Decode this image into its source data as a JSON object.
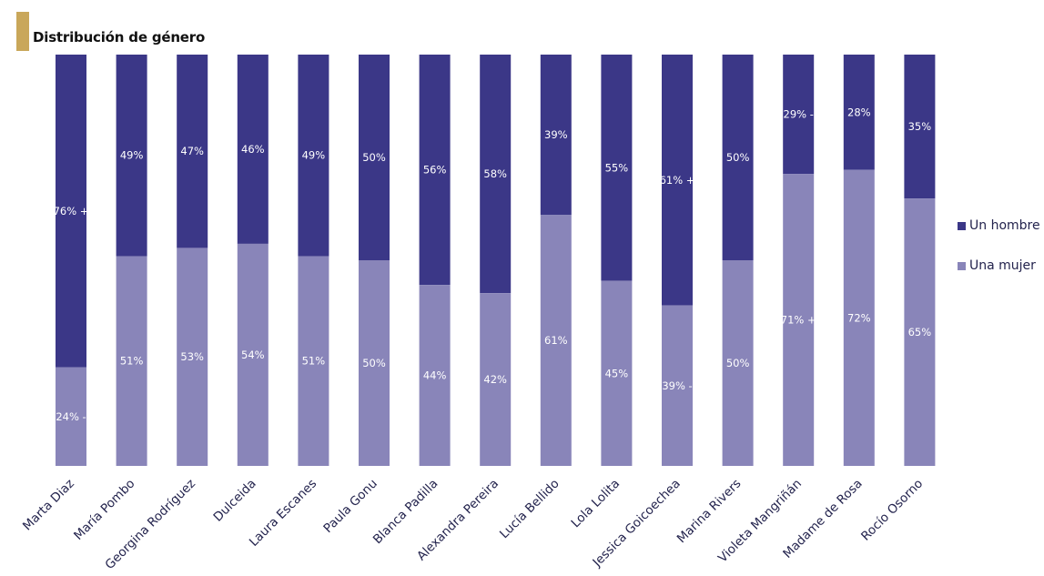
{
  "title": "Distribución de género",
  "colors": {
    "hombre": "#3b3787",
    "mujer": "#8985b9",
    "accent": "#c9a75a"
  },
  "chart_data": {
    "type": "bar",
    "stacked": true,
    "title": "Distribución de género",
    "categories": [
      "Marta Diaz",
      "María Pombo",
      "Georgina Rodríguez",
      "Dulceida",
      "Laura Escanes",
      "Paula Gonu",
      "Blanca Padilla",
      "Alexandra Pereira",
      "Lucía Bellido",
      "Lola Lolita",
      "Jessica Goicoechea",
      "Marina Rivers",
      "Violeta Mangriñán",
      "Madame de Rosa",
      "Rocío Osorno"
    ],
    "series": [
      {
        "name": "Una mujer",
        "values": [
          24,
          51,
          53,
          54,
          51,
          50,
          44,
          42,
          61,
          45,
          39,
          50,
          71,
          72,
          65
        ],
        "labels": [
          "24% -",
          "51%",
          "53%",
          "54%",
          "51%",
          "50%",
          "44%",
          "42%",
          "61%",
          "45%",
          "39% -",
          "50%",
          "71% +",
          "72%",
          "65%"
        ]
      },
      {
        "name": "Un hombre",
        "values": [
          76,
          49,
          47,
          46,
          49,
          50,
          56,
          58,
          39,
          55,
          61,
          50,
          29,
          28,
          35
        ],
        "labels": [
          "76% +",
          "49%",
          "47%",
          "46%",
          "49%",
          "50%",
          "56%",
          "58%",
          "39%",
          "55%",
          "61% +",
          "50%",
          "29% -",
          "28%",
          "35%"
        ]
      }
    ],
    "ylim": [
      0,
      100
    ],
    "xlabel": "",
    "ylabel": "",
    "legend_position": "right"
  },
  "legend": [
    {
      "label": "Un hombre",
      "color": "#3b3787"
    },
    {
      "label": "Una mujer",
      "color": "#8985b9"
    }
  ]
}
